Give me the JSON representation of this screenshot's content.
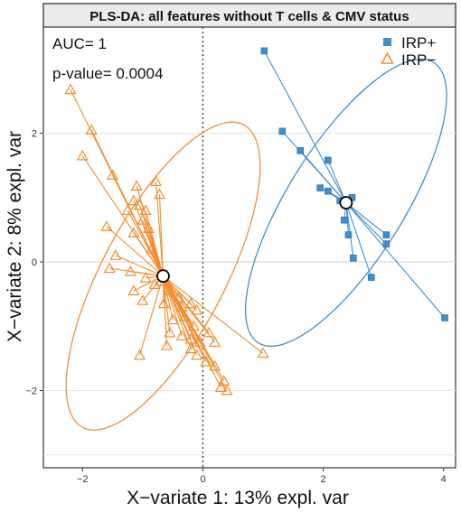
{
  "chart_data": {
    "type": "scatter",
    "title": "PLS-DA: all features without T cells & CMV status",
    "xlabel": "X−variate 1: 13% expl. var",
    "ylabel": "X−variate 2: 8% expl. var",
    "xlim": [
      -2.65,
      4.2
    ],
    "ylim": [
      -3.2,
      3.65
    ],
    "x_ticks": [
      -2,
      0,
      2,
      4
    ],
    "x_tick_labels": [
      "−2",
      "0",
      "2",
      "4"
    ],
    "y_ticks": [
      -2,
      0,
      2
    ],
    "y_tick_labels": [
      "−2",
      "0",
      "2"
    ],
    "grid": true,
    "zero_lines": {
      "x": "dotted-vertical",
      "y": "horizontal"
    },
    "annotations": [
      "AUC= 1",
      "p-value= 0.0004"
    ],
    "legend_position": "top-right",
    "colors": {
      "IRP+": "#3f8fd0",
      "IRP−": "#f28e30"
    },
    "series": [
      {
        "name": "IRP+",
        "marker": "square",
        "centroid": [
          2.38,
          0.92
        ],
        "ellipse": {
          "center": [
            2.38,
            0.92
          ],
          "rx": 2.75,
          "ry": 0.9,
          "angle_deg": -58
        },
        "points": [
          [
            1.02,
            3.28
          ],
          [
            1.32,
            2.03
          ],
          [
            1.62,
            1.73
          ],
          [
            2.08,
            1.58
          ],
          [
            1.95,
            1.15
          ],
          [
            2.08,
            1.1
          ],
          [
            2.28,
            0.95
          ],
          [
            2.48,
            1.0
          ],
          [
            2.35,
            0.65
          ],
          [
            2.42,
            0.42
          ],
          [
            2.5,
            0.06
          ],
          [
            2.8,
            -0.24
          ],
          [
            3.05,
            0.42
          ],
          [
            3.05,
            0.28
          ],
          [
            4.02,
            -0.87
          ]
        ]
      },
      {
        "name": "IRP−",
        "marker": "triangle-open",
        "centroid": [
          -0.66,
          -0.22
        ],
        "ellipse": {
          "center": [
            -0.66,
            -0.22
          ],
          "rx": 2.85,
          "ry": 0.95,
          "angle_deg": -62
        },
        "points": [
          [
            -2.2,
            2.68
          ],
          [
            -1.85,
            2.05
          ],
          [
            -2.0,
            1.65
          ],
          [
            -1.5,
            1.35
          ],
          [
            -1.1,
            1.18
          ],
          [
            -0.78,
            1.25
          ],
          [
            -0.72,
            1.05
          ],
          [
            -1.15,
            0.95
          ],
          [
            -1.05,
            0.88
          ],
          [
            -0.95,
            0.8
          ],
          [
            -1.25,
            0.8
          ],
          [
            -1.0,
            0.65
          ],
          [
            -0.9,
            0.52
          ],
          [
            -1.15,
            0.45
          ],
          [
            -1.6,
            0.55
          ],
          [
            -0.85,
            0.2
          ],
          [
            -1.45,
            0.1
          ],
          [
            -1.55,
            -0.1
          ],
          [
            -1.2,
            -0.15
          ],
          [
            -0.95,
            -0.25
          ],
          [
            -0.8,
            -0.35
          ],
          [
            -0.7,
            -0.3
          ],
          [
            -0.55,
            -0.45
          ],
          [
            -0.4,
            -0.55
          ],
          [
            -1.15,
            -0.45
          ],
          [
            -1.0,
            -0.6
          ],
          [
            -0.65,
            -0.65
          ],
          [
            -0.35,
            -0.7
          ],
          [
            -0.2,
            -0.65
          ],
          [
            -0.1,
            -0.75
          ],
          [
            -0.3,
            -0.85
          ],
          [
            -0.5,
            -0.9
          ],
          [
            -0.15,
            -1.0
          ],
          [
            -0.55,
            -1.1
          ],
          [
            -0.35,
            -1.15
          ],
          [
            -0.2,
            -1.2
          ],
          [
            -0.05,
            -1.25
          ],
          [
            0.1,
            -1.1
          ],
          [
            0.2,
            -1.25
          ],
          [
            -0.6,
            -1.3
          ],
          [
            -0.2,
            -1.35
          ],
          [
            -0.1,
            -1.45
          ],
          [
            0.05,
            -1.55
          ],
          [
            -1.05,
            -1.45
          ],
          [
            0.35,
            -1.85
          ],
          [
            0.3,
            -1.95
          ],
          [
            0.4,
            -2.0
          ],
          [
            0.2,
            -1.62
          ],
          [
            1.0,
            -1.42
          ]
        ]
      }
    ]
  }
}
